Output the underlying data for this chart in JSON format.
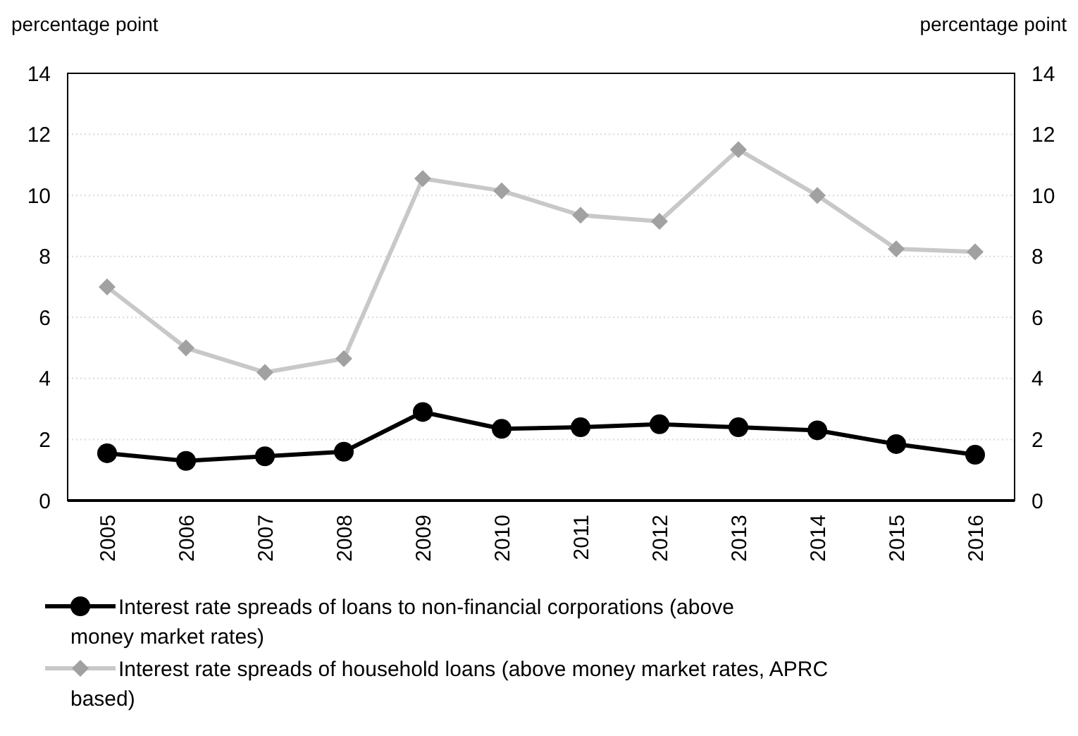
{
  "chart_data": {
    "type": "line",
    "ylabel": "percentage point",
    "y2label": "percentage point",
    "categories": [
      "2005",
      "2006",
      "2007",
      "2008",
      "2009",
      "2010",
      "2011",
      "2012",
      "2013",
      "2014",
      "2015",
      "2016"
    ],
    "series": [
      {
        "name": "Interest rate spreads of loans to non-financial corporations (above money market rates)",
        "color": "#000000",
        "marker": "circle",
        "values": [
          1.55,
          1.3,
          1.45,
          1.6,
          2.9,
          2.35,
          2.4,
          2.5,
          2.4,
          2.3,
          1.85,
          1.5
        ]
      },
      {
        "name": "Interest rate spreads of household loans (above money market rates, APRC based)",
        "color": "#c8c8c8",
        "marker": "diamond",
        "values": [
          7.0,
          5.0,
          4.2,
          4.65,
          10.55,
          10.15,
          9.35,
          9.15,
          11.5,
          10.0,
          8.25,
          8.15
        ]
      }
    ],
    "ylim": [
      0,
      14
    ],
    "yticks": [
      0,
      2,
      4,
      6,
      8,
      10,
      12,
      14
    ],
    "y2lim": [
      0,
      14
    ],
    "y2ticks": [
      0,
      2,
      4,
      6,
      8,
      10,
      12,
      14
    ],
    "grid": "y",
    "legend": "bottom",
    "line_style": "solid"
  }
}
